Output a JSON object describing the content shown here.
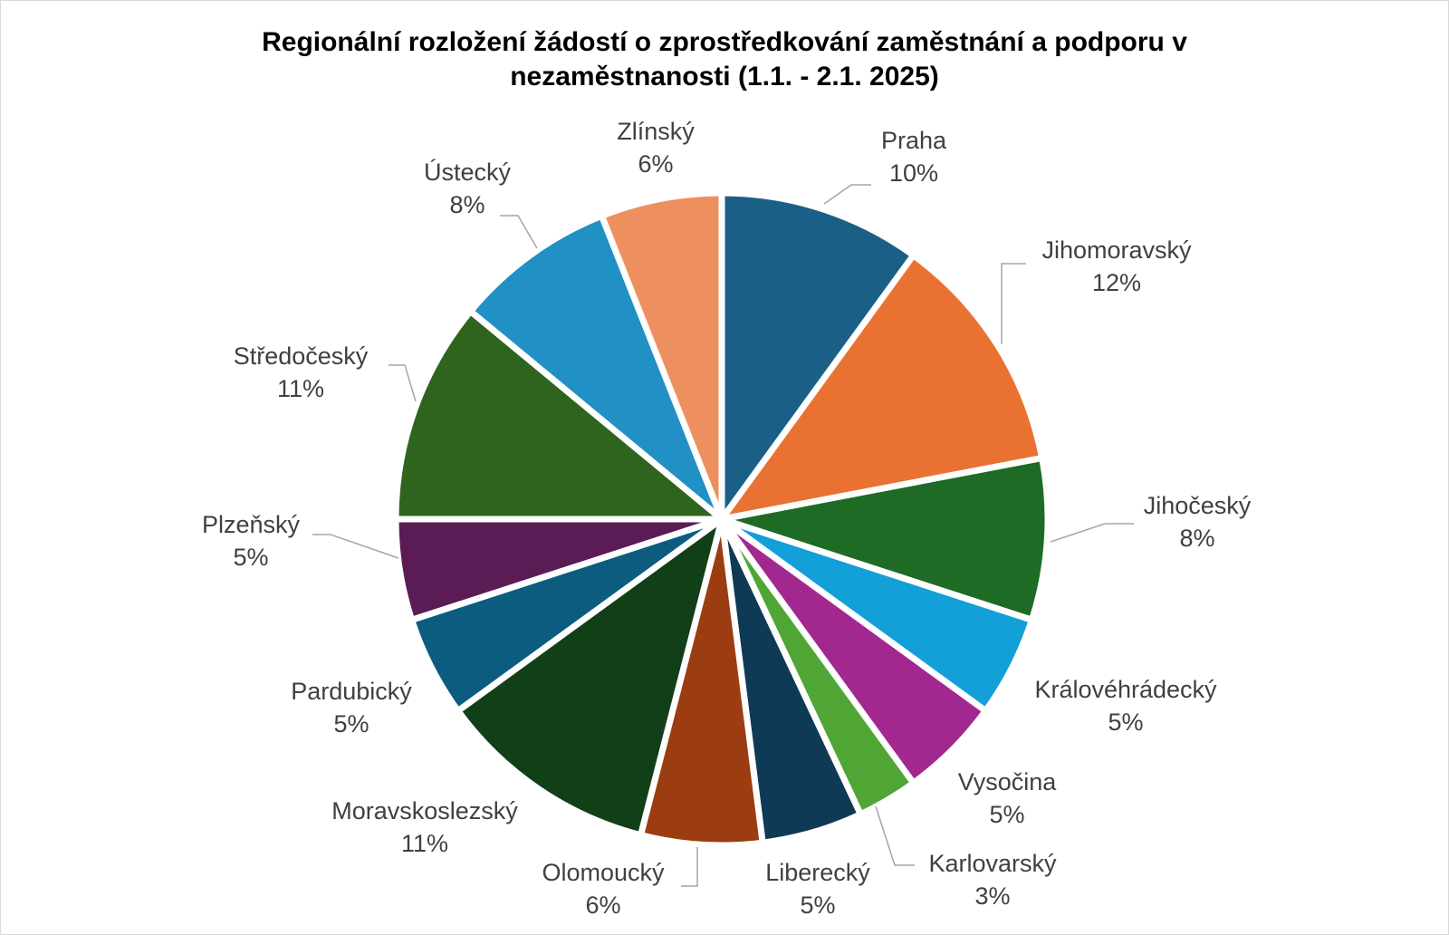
{
  "chart_data": {
    "type": "pie",
    "title_lines": [
      "Regionální rozložení žádostí o zprostředkování zaměstnání a podporu v",
      "nezaměstnanosti (1.1. - 2.1. 2025)"
    ],
    "slices": [
      {
        "name": "Praha",
        "value": 10,
        "label": "10%",
        "color": "#1a5f86"
      },
      {
        "name": "Jihomoravský",
        "value": 12,
        "label": "12%",
        "color": "#e97232"
      },
      {
        "name": "Jihočeský",
        "value": 8,
        "label": "8%",
        "color": "#1d6b25"
      },
      {
        "name": "Královéhrádecký",
        "value": 5,
        "label": "5%",
        "color": "#139fd8"
      },
      {
        "name": "Vysočina",
        "value": 5,
        "label": "5%",
        "color": "#a2288f"
      },
      {
        "name": "Karlovarský",
        "value": 3,
        "label": "3%",
        "color": "#4fa635"
      },
      {
        "name": "Liberecký",
        "value": 5,
        "label": "5%",
        "color": "#0e3a55"
      },
      {
        "name": "Olomoucký",
        "value": 6,
        "label": "6%",
        "color": "#9b3d10"
      },
      {
        "name": "Moravskoslezský",
        "value": 11,
        "label": "11%",
        "color": "#113f18"
      },
      {
        "name": "Pardubický",
        "value": 5,
        "label": "5%",
        "color": "#0c5c80"
      },
      {
        "name": "Plzeňský",
        "value": 5,
        "label": "5%",
        "color": "#5b1b55"
      },
      {
        "name": "Středočeský",
        "value": 11,
        "label": "11%",
        "color": "#2f641e"
      },
      {
        "name": "Ústecký",
        "value": 8,
        "label": "8%",
        "color": "#2190c4"
      },
      {
        "name": "Zlínský",
        "value": 6,
        "label": "6%",
        "color": "#ee8f60"
      }
    ],
    "legend": "none",
    "data_labels": "category name and percentage, outside with leader lines"
  }
}
